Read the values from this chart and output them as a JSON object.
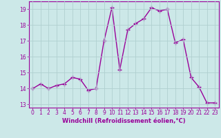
{
  "x": [
    0,
    1,
    2,
    3,
    4,
    5,
    6,
    7,
    8,
    9,
    10,
    11,
    12,
    13,
    14,
    15,
    16,
    17,
    18,
    19,
    20,
    21,
    22,
    23
  ],
  "y": [
    14.0,
    14.3,
    14.0,
    14.2,
    14.3,
    14.7,
    14.6,
    13.9,
    14.0,
    17.0,
    19.1,
    15.2,
    17.7,
    18.1,
    18.4,
    19.1,
    18.9,
    19.0,
    16.9,
    17.1,
    14.7,
    14.1,
    13.1,
    13.1
  ],
  "line_color": "#990099",
  "marker": "+",
  "marker_size": 4,
  "marker_lw": 1.0,
  "bg_color": "#cce8e8",
  "grid_color": "#b0d0d0",
  "xlabel": "Windchill (Refroidissement éolien,°C)",
  "xlabel_color": "#990099",
  "tick_color": "#990099",
  "spine_color": "#990099",
  "ylim": [
    12.8,
    19.5
  ],
  "xlim": [
    -0.5,
    23.5
  ],
  "yticks": [
    13,
    14,
    15,
    16,
    17,
    18,
    19
  ],
  "xticks": [
    0,
    1,
    2,
    3,
    4,
    5,
    6,
    7,
    8,
    9,
    10,
    11,
    12,
    13,
    14,
    15,
    16,
    17,
    18,
    19,
    20,
    21,
    22,
    23
  ],
  "line_width": 1.0,
  "tick_fontsize": 5.5,
  "xlabel_fontsize": 6.0
}
